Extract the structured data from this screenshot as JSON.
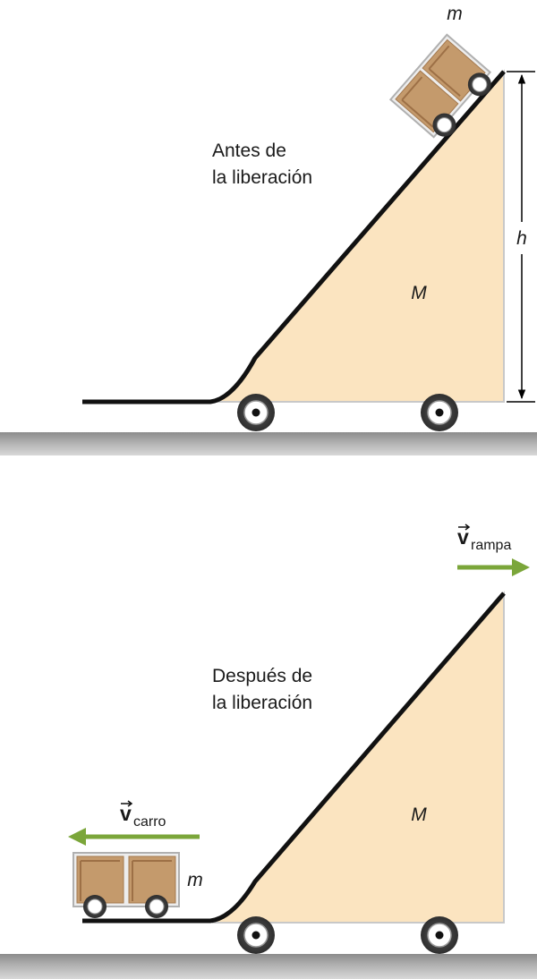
{
  "before": {
    "caption_line1": "Antes de",
    "caption_line2": "la liberación",
    "ramp_mass": "M",
    "cart_mass": "m",
    "height": "h"
  },
  "after": {
    "caption_line1": "Después de",
    "caption_line2": "la liberación",
    "ramp_mass": "M",
    "cart_mass": "m",
    "ramp_velocity_symbol": "v",
    "ramp_velocity_sub": "rampa",
    "cart_velocity_symbol": "v",
    "cart_velocity_sub": "carro"
  },
  "colors": {
    "ramp_fill": "#fbe4c0",
    "cart_body": "#c49a6c",
    "arrow": "#7ba63a",
    "ground": "#9a9a9a"
  }
}
